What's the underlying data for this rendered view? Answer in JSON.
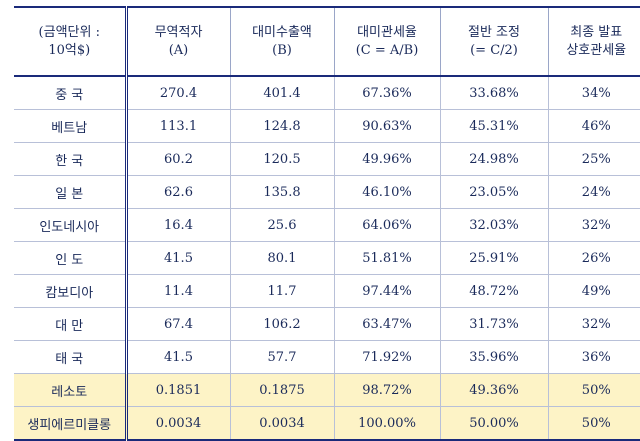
{
  "headers": [
    {
      "l1": "(금액단위 :",
      "l2": "10억$)"
    },
    {
      "l1": "무역적자",
      "l2": "(A)"
    },
    {
      "l1": "대미수출액",
      "l2": "(B)"
    },
    {
      "l1": "대미관세율",
      "l2": "(C = A/B)"
    },
    {
      "l1": "절반 조정",
      "l2": "(= C/2)"
    },
    {
      "l1": "최종 발표",
      "l2": "상호관세율"
    }
  ],
  "rows": [
    [
      "중  국",
      "270.4",
      "401.4",
      "67.36%",
      "33.68%",
      "34%"
    ],
    [
      "베트남",
      "113.1",
      "124.8",
      "90.63%",
      "45.31%",
      "46%"
    ],
    [
      "한  국",
      "60.2",
      "120.5",
      "49.96%",
      "24.98%",
      "25%"
    ],
    [
      "일  본",
      "62.6",
      "135.8",
      "46.10%",
      "23.05%",
      "24%"
    ],
    [
      "인도네시아",
      "16.4",
      "25.6",
      "64.06%",
      "32.03%",
      "32%"
    ],
    [
      "인  도",
      "41.5",
      "80.1",
      "51.81%",
      "25.91%",
      "26%"
    ],
    [
      "캄보디아",
      "11.4",
      "11.7",
      "97.44%",
      "48.72%",
      "49%"
    ],
    [
      "대  만",
      "67.4",
      "106.2",
      "63.47%",
      "31.73%",
      "32%"
    ],
    [
      "태  국",
      "41.5",
      "57.7",
      "71.92%",
      "35.96%",
      "36%"
    ],
    [
      "레소토",
      "0.1851",
      "0.1875",
      "98.72%",
      "49.36%",
      "50%"
    ],
    [
      "생피에르미클롱",
      "0.0034",
      "0.0034",
      "100.00%",
      "50.00%",
      "50%"
    ]
  ],
  "highlight_rows": [
    9,
    10
  ],
  "colors": {
    "text": "#1a2a5a",
    "highlight": "#fdf3c6",
    "rule": "#1a2a7a"
  }
}
